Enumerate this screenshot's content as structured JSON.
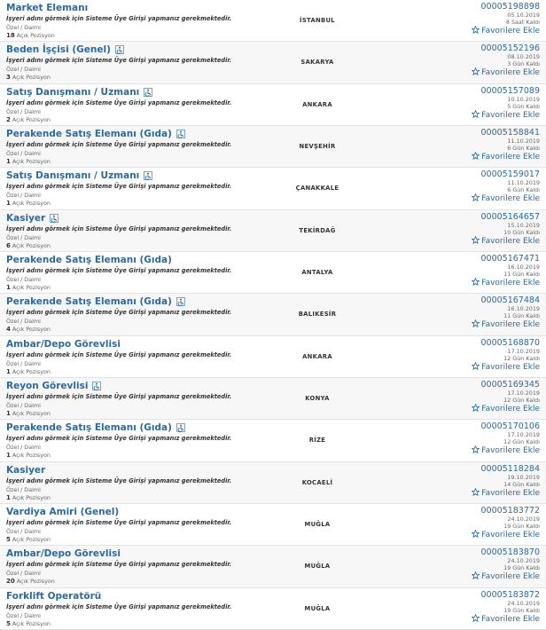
{
  "common": {
    "note": "İşyeri adını görmek için Sisteme Üye Girişi yapmanız gerekmektedir.",
    "type": "Özel / Daimi",
    "positions_suffix": "Açık Pozisyon",
    "favorite": "Favorilere Ekle"
  },
  "jobs": [
    {
      "title": "Market Elemanı",
      "disabled_icon": false,
      "city": "İSTANBUL",
      "id": "00005198898",
      "date": "05.10.2019",
      "remaining": "8 Saat Kaldı",
      "positions": "18"
    },
    {
      "title": "Beden İşçisi (Genel)",
      "disabled_icon": true,
      "city": "SAKARYA",
      "id": "00005152196",
      "date": "08.10.2019",
      "remaining": "3 Gün Kaldı",
      "positions": "3"
    },
    {
      "title": "Satış Danışmanı / Uzmanı",
      "disabled_icon": true,
      "city": "ANKARA",
      "id": "00005157089",
      "date": "10.10.2019",
      "remaining": "5 Gün Kaldı",
      "positions": "2"
    },
    {
      "title": "Perakende Satış Elemanı (Gıda)",
      "disabled_icon": true,
      "city": "NEVŞEHİR",
      "id": "00005158841",
      "date": "11.10.2019",
      "remaining": "6 Gün Kaldı",
      "positions": "1"
    },
    {
      "title": "Satış Danışmanı / Uzmanı",
      "disabled_icon": true,
      "city": "ÇANAKKALE",
      "id": "00005159017",
      "date": "11.10.2019",
      "remaining": "6 Gün Kaldı",
      "positions": "1"
    },
    {
      "title": "Kasiyer",
      "disabled_icon": true,
      "city": "TEKİRDAĞ",
      "id": "00005164657",
      "date": "15.10.2019",
      "remaining": "10 Gün Kaldı",
      "positions": "6"
    },
    {
      "title": "Perakende Satış Elemanı (Gıda)",
      "disabled_icon": false,
      "city": "ANTALYA",
      "id": "00005167471",
      "date": "16.10.2019",
      "remaining": "11 Gün Kaldı",
      "positions": "1"
    },
    {
      "title": "Perakende Satış Elemanı (Gıda)",
      "disabled_icon": true,
      "city": "BALIKESİR",
      "id": "00005167484",
      "date": "16.10.2019",
      "remaining": "11 Gün Kaldı",
      "positions": "4"
    },
    {
      "title": "Ambar/Depo Görevlisi",
      "disabled_icon": false,
      "city": "ANKARA",
      "id": "00005168870",
      "date": "17.10.2019",
      "remaining": "12 Gün Kaldı",
      "positions": "1"
    },
    {
      "title": "Reyon Görevlisi",
      "disabled_icon": true,
      "city": "KONYA",
      "id": "00005169345",
      "date": "17.10.2019",
      "remaining": "12 Gün Kaldı",
      "positions": "1"
    },
    {
      "title": "Perakende Satış Elemanı (Gıda)",
      "disabled_icon": true,
      "city": "RİZE",
      "id": "00005170106",
      "date": "17.10.2019",
      "remaining": "12 Gün Kaldı",
      "positions": "1"
    },
    {
      "title": "Kasiyer",
      "disabled_icon": false,
      "city": "KOCAELİ",
      "id": "00005118284",
      "date": "19.10.2019",
      "remaining": "14 Gün Kaldı",
      "positions": "1"
    },
    {
      "title": "Vardiya Amiri (Genel)",
      "disabled_icon": false,
      "city": "MUĞLA",
      "id": "00005183772",
      "date": "24.10.2019",
      "remaining": "19 Gün Kaldı",
      "positions": "5"
    },
    {
      "title": "Ambar/Depo Görevlisi",
      "disabled_icon": false,
      "city": "MUĞLA",
      "id": "00005183870",
      "date": "24.10.2019",
      "remaining": "19 Gün Kaldı",
      "positions": "20"
    },
    {
      "title": "Forklift Operatörü",
      "disabled_icon": false,
      "city": "MUĞLA",
      "id": "00005183872",
      "date": "24.10.2019",
      "remaining": "19 Gün Kaldı",
      "positions": "5"
    }
  ]
}
